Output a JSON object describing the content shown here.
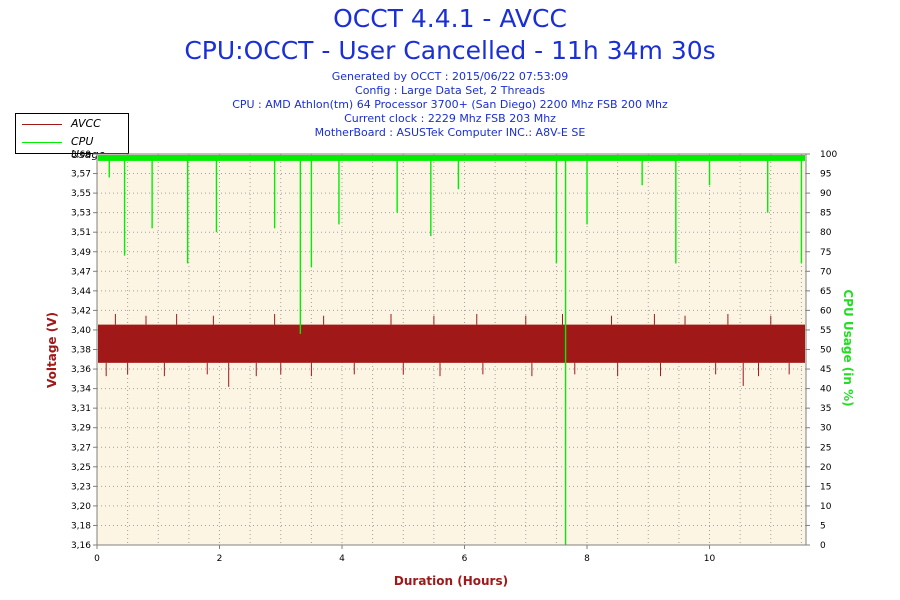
{
  "header": {
    "title": "OCCT 4.4.1 - AVCC",
    "subtitle": "CPU:OCCT - User Cancelled - 11h 34m 30s",
    "info_lines": [
      "Generated by OCCT : 2015/06/22 07:53:09",
      "Config : Large Data Set, 2 Threads",
      "CPU : AMD Athlon(tm) 64 Processor 3700+ (San Diego) 2200 Mhz FSB 200 Mhz",
      "Current clock : 2229 Mhz FSB 203 Mhz",
      "MotherBoard : ASUSTek Computer INC.: A8V-E SE"
    ]
  },
  "legend": {
    "items": [
      {
        "label": "AVCC",
        "color": "#a01818"
      },
      {
        "label": "CPU Usage",
        "color": "#00ee00"
      }
    ]
  },
  "chart_data": {
    "type": "line",
    "xlabel": "Duration (Hours)",
    "ylabel": "Voltage (V)",
    "y2label": "CPU Usage (in %)",
    "xlim": [
      0,
      11.575
    ],
    "x_ticks": [
      0,
      2,
      4,
      6,
      8,
      10
    ],
    "ylim": [
      3.16,
      3.6
    ],
    "y_tick_labels": [
      "3,60",
      "3,57",
      "3,55",
      "3,53",
      "3,51",
      "3,49",
      "3,47",
      "3,44",
      "3,42",
      "3,40",
      "3,38",
      "3,36",
      "3,34",
      "3,31",
      "3,29",
      "3,27",
      "3,25",
      "3,23",
      "3,20",
      "3,18",
      "3,16"
    ],
    "y2lim": [
      0,
      100
    ],
    "y2_ticks": [
      0,
      5,
      10,
      15,
      20,
      25,
      30,
      35,
      40,
      45,
      50,
      55,
      60,
      65,
      70,
      75,
      80,
      85,
      90,
      95,
      100
    ],
    "series": [
      {
        "name": "AVCC",
        "axis": "left",
        "color": "#a01818",
        "band_low": 3.365,
        "band_high": 3.408,
        "spikes_low": [
          [
            0.15,
            3.35
          ],
          [
            0.5,
            3.352
          ],
          [
            1.1,
            3.35
          ],
          [
            1.8,
            3.352
          ],
          [
            2.6,
            3.35
          ],
          [
            3.0,
            3.352
          ],
          [
            3.5,
            3.35
          ],
          [
            4.2,
            3.352
          ],
          [
            5.0,
            3.352
          ],
          [
            5.6,
            3.35
          ],
          [
            6.3,
            3.352
          ],
          [
            7.1,
            3.35
          ],
          [
            7.8,
            3.352
          ],
          [
            8.5,
            3.35
          ],
          [
            9.2,
            3.35
          ],
          [
            10.1,
            3.352
          ],
          [
            10.8,
            3.35
          ],
          [
            11.3,
            3.352
          ],
          [
            2.15,
            3.338
          ],
          [
            10.55,
            3.339
          ]
        ],
        "spikes_high": [
          [
            0.3,
            3.42
          ],
          [
            0.8,
            3.418
          ],
          [
            1.3,
            3.42
          ],
          [
            1.9,
            3.418
          ],
          [
            2.9,
            3.42
          ],
          [
            3.7,
            3.418
          ],
          [
            4.8,
            3.42
          ],
          [
            5.5,
            3.418
          ],
          [
            6.2,
            3.42
          ],
          [
            7.0,
            3.418
          ],
          [
            7.6,
            3.42
          ],
          [
            8.4,
            3.418
          ],
          [
            9.1,
            3.42
          ],
          [
            9.6,
            3.418
          ],
          [
            10.3,
            3.42
          ],
          [
            11.0,
            3.418
          ]
        ]
      },
      {
        "name": "CPU Usage",
        "axis": "right",
        "color": "#00ee00",
        "baseline": 99,
        "dips": [
          [
            0.2,
            94
          ],
          [
            0.45,
            74
          ],
          [
            0.9,
            81
          ],
          [
            1.48,
            72
          ],
          [
            1.95,
            80
          ],
          [
            2.9,
            81
          ],
          [
            3.32,
            54
          ],
          [
            3.5,
            71
          ],
          [
            3.95,
            82
          ],
          [
            4.9,
            85
          ],
          [
            5.45,
            79
          ],
          [
            5.9,
            91
          ],
          [
            7.5,
            72
          ],
          [
            7.65,
            0
          ],
          [
            8.0,
            82
          ],
          [
            8.9,
            92
          ],
          [
            9.45,
            72
          ],
          [
            10.0,
            92
          ],
          [
            10.95,
            85
          ],
          [
            11.5,
            72
          ]
        ]
      }
    ]
  }
}
